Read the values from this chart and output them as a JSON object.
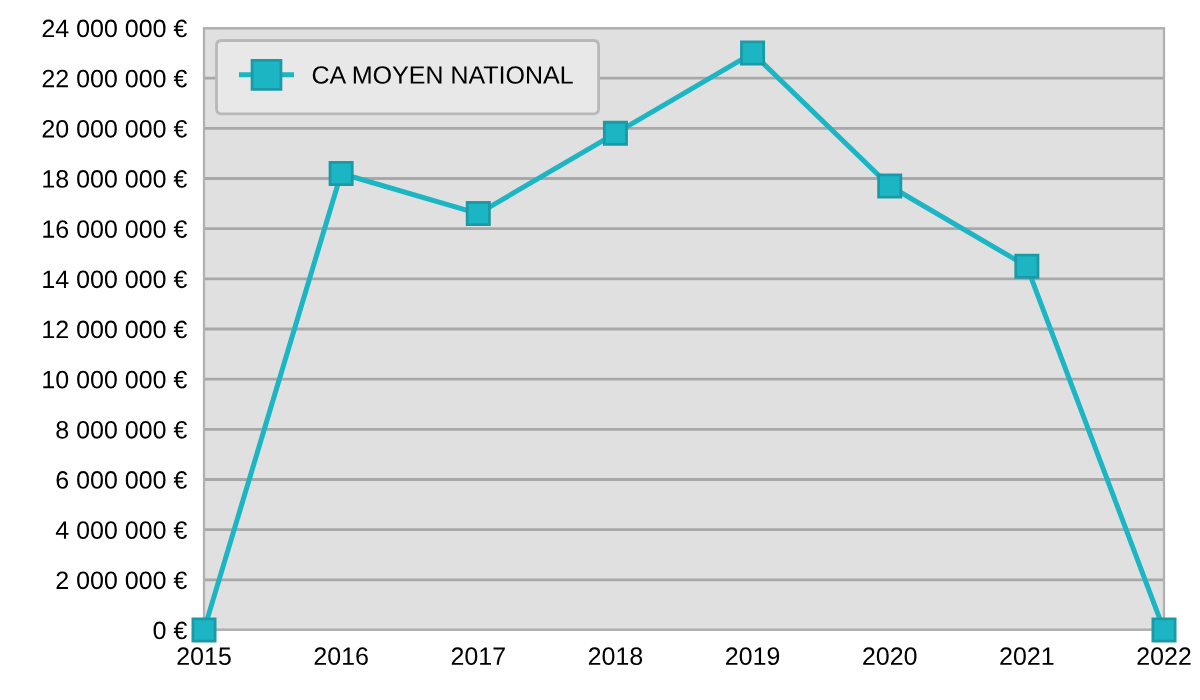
{
  "chart_data": {
    "type": "line",
    "categories": [
      "2015",
      "2016",
      "2017",
      "2018",
      "2019",
      "2020",
      "2021",
      "2022"
    ],
    "series": [
      {
        "name": "CA MOYEN NATIONAL",
        "color": "#1cb5c3",
        "values": [
          0,
          18200000,
          16600000,
          19800000,
          23000000,
          17700000,
          14500000,
          0
        ]
      }
    ],
    "ylim": [
      0,
      24000000
    ],
    "yticks": [
      {
        "value": 0,
        "label": "0 €"
      },
      {
        "value": 2000000,
        "label": "2 000 000 €"
      },
      {
        "value": 4000000,
        "label": "4 000 000 €"
      },
      {
        "value": 6000000,
        "label": "6 000 000 €"
      },
      {
        "value": 8000000,
        "label": "8 000 000 €"
      },
      {
        "value": 10000000,
        "label": "10 000 000 €"
      },
      {
        "value": 12000000,
        "label": "12 000 000 €"
      },
      {
        "value": 14000000,
        "label": "14 000 000 €"
      },
      {
        "value": 16000000,
        "label": "16 000 000 €"
      },
      {
        "value": 18000000,
        "label": "18 000 000 €"
      },
      {
        "value": 20000000,
        "label": "20 000 000 €"
      },
      {
        "value": 22000000,
        "label": "22 000 000 €"
      },
      {
        "value": 24000000,
        "label": "24 000 000 €"
      }
    ],
    "grid": "y",
    "legend": "top left",
    "marker": "square",
    "line_style": "solid"
  }
}
